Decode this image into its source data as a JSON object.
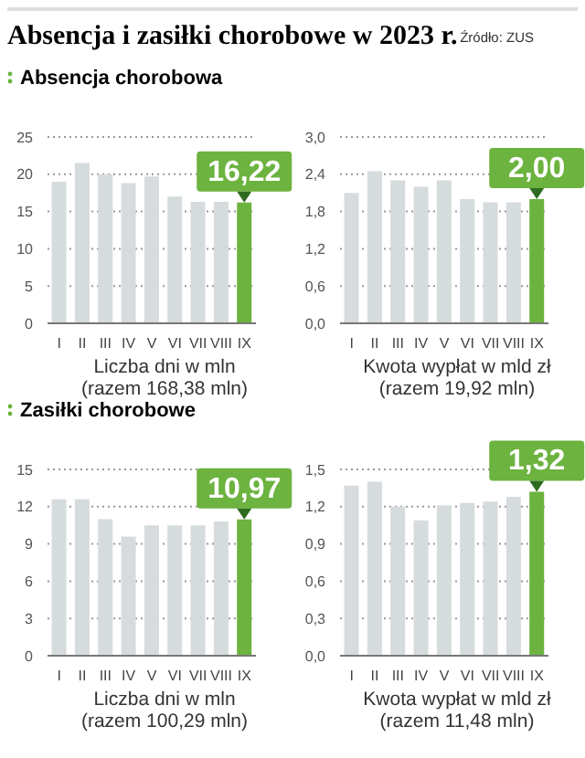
{
  "chart_data": [
    {
      "type": "bar",
      "title": "Absencja i zasiłki chorobowe w 2023 r.",
      "subtitle": "Absencja chorobowa",
      "annotations": [
        "Źródło: ZUS"
      ],
      "xlabel": "Liczba dni w mln\n(razem 168,38 mln)",
      "categories": [
        "I",
        "II",
        "III",
        "IV",
        "V",
        "VI",
        "VII",
        "VIII",
        "IX"
      ],
      "values": [
        19.0,
        21.5,
        20.0,
        18.8,
        19.7,
        17.0,
        16.3,
        16.3,
        16.22
      ],
      "colors": [
        "#d6dbde",
        "#d6dbde",
        "#d6dbde",
        "#d6dbde",
        "#d6dbde",
        "#d6dbde",
        "#d6dbde",
        "#d6dbde",
        "#6cb33f"
      ],
      "value_labels": [
        null,
        null,
        null,
        null,
        null,
        null,
        null,
        null,
        "16,22"
      ],
      "ylim": [
        0,
        25
      ],
      "yticks": [
        0,
        5,
        10,
        15,
        20,
        25
      ],
      "grid": "y"
    },
    {
      "type": "bar",
      "xlabel": "Kwota wypłat w mld zł\n(razem 19,92 mln)",
      "categories": [
        "I",
        "II",
        "III",
        "IV",
        "V",
        "VI",
        "VII",
        "VIII",
        "IX"
      ],
      "values": [
        2.1,
        2.45,
        2.3,
        2.2,
        2.3,
        2.0,
        1.95,
        1.95,
        2.0
      ],
      "colors": [
        "#d6dbde",
        "#d6dbde",
        "#d6dbde",
        "#d6dbde",
        "#d6dbde",
        "#d6dbde",
        "#d6dbde",
        "#d6dbde",
        "#6cb33f"
      ],
      "value_labels": [
        null,
        null,
        null,
        null,
        null,
        null,
        null,
        null,
        "2,00"
      ],
      "ylim": [
        0,
        3
      ],
      "yticks": [
        {
          "value": 0,
          "label": "0,0"
        },
        {
          "value": 0.6,
          "label": "0,6"
        },
        {
          "value": 1.2,
          "label": "1,2"
        },
        {
          "value": 1.8,
          "label": "1,8"
        },
        {
          "value": 2.4,
          "label": "2,4"
        },
        {
          "value": 3,
          "label": "3,0"
        }
      ],
      "grid": "y"
    },
    {
      "type": "bar",
      "subtitle": "Zasiłki chorobowe",
      "xlabel": "Liczba dni w mln\n(razem 100,29 mln)",
      "categories": [
        "I",
        "II",
        "III",
        "IV",
        "V",
        "VI",
        "VII",
        "VIII",
        "IX"
      ],
      "values": [
        12.6,
        12.6,
        11.0,
        9.6,
        10.5,
        10.5,
        10.5,
        10.8,
        10.97
      ],
      "colors": [
        "#d6dbde",
        "#d6dbde",
        "#d6dbde",
        "#d6dbde",
        "#d6dbde",
        "#d6dbde",
        "#d6dbde",
        "#d6dbde",
        "#6cb33f"
      ],
      "value_labels": [
        null,
        null,
        null,
        null,
        null,
        null,
        null,
        null,
        "10,97"
      ],
      "ylim": [
        0,
        15
      ],
      "yticks": [
        0,
        3,
        6,
        9,
        12,
        15
      ],
      "grid": "y"
    },
    {
      "type": "bar",
      "xlabel": "Kwota wypłat w mld zł\n(razem 11,48 mln)",
      "categories": [
        "I",
        "II",
        "III",
        "IV",
        "V",
        "VI",
        "VII",
        "VIII",
        "IX"
      ],
      "values": [
        1.37,
        1.4,
        1.2,
        1.09,
        1.21,
        1.23,
        1.24,
        1.28,
        1.32
      ],
      "colors": [
        "#d6dbde",
        "#d6dbde",
        "#d6dbde",
        "#d6dbde",
        "#d6dbde",
        "#d6dbde",
        "#d6dbde",
        "#d6dbde",
        "#6cb33f"
      ],
      "value_labels": [
        null,
        null,
        null,
        null,
        null,
        null,
        null,
        null,
        "1,32"
      ],
      "ylim": [
        0,
        1.5
      ],
      "yticks": [
        {
          "value": 0,
          "label": "0,0"
        },
        {
          "value": 0.3,
          "label": "0,3"
        },
        {
          "value": 0.6,
          "label": "0,6"
        },
        {
          "value": 0.9,
          "label": "0,9"
        },
        {
          "value": 1.2,
          "label": "1,2"
        },
        {
          "value": 1.5,
          "label": "1,5"
        }
      ],
      "grid": "y"
    }
  ]
}
